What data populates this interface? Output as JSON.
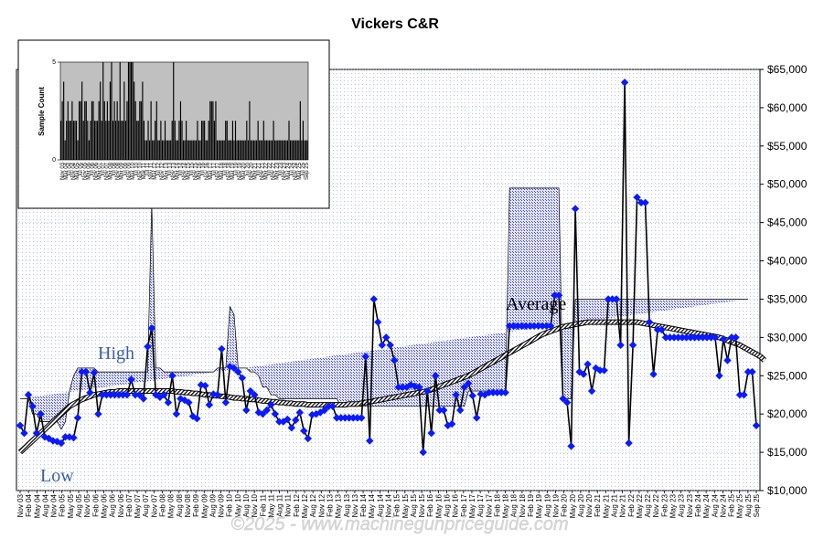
{
  "chart_data": [
    {
      "type": "line",
      "title": "Vickers C&R",
      "y_tick_labels": [
        "$10,000",
        "$15,000",
        "$20,000",
        "$25,000",
        "$30,000",
        "$35,000",
        "$40,000",
        "$45,000",
        "$50,000",
        "$55,000",
        "$60,000",
        "$65,000"
      ],
      "y_tick_values": [
        10000,
        15000,
        20000,
        25000,
        30000,
        35000,
        40000,
        45000,
        50000,
        55000,
        60000,
        65000
      ],
      "ylim": [
        10000,
        65000
      ],
      "x_tick_labels": [
        "Nov 03",
        "Feb 04",
        "May 04",
        "Aug 04",
        "Nov 04",
        "Feb 05",
        "May 05",
        "Aug 05",
        "Nov 05",
        "Feb 06",
        "May 06",
        "Aug 06",
        "Nov 06",
        "Feb 07",
        "May 07",
        "Aug 07",
        "Nov 07",
        "Feb 08",
        "May 08",
        "Aug 08",
        "Nov 08",
        "Feb 09",
        "May 09",
        "Aug 09",
        "Nov 09",
        "Feb 10",
        "May 10",
        "Aug 10",
        "Nov 10",
        "Feb 11",
        "May 11",
        "Aug 11",
        "Nov 11",
        "Feb 12",
        "May 12",
        "Aug 12",
        "Nov 12",
        "Feb 13",
        "May 13",
        "Aug 13",
        "Nov 13",
        "Feb 14",
        "May 14",
        "Aug 14",
        "Nov 14",
        "Feb 15",
        "May 15",
        "Aug 15",
        "Nov 15",
        "Feb 16",
        "May 16",
        "Aug 16",
        "Nov 16",
        "Feb 17",
        "May 17",
        "Aug 17",
        "Nov 17",
        "Feb 18",
        "May 18",
        "Aug 18",
        "Nov 18",
        "Feb 19",
        "May 19",
        "Aug 19",
        "Nov 19",
        "Feb 20",
        "May 20",
        "Aug 20",
        "Nov 20",
        "Feb 21",
        "May 21",
        "Aug 21",
        "Nov 21",
        "Feb 22",
        "May 22",
        "Aug 22",
        "Nov 22",
        "Feb 23",
        "May 23",
        "Aug 23",
        "Nov 23",
        "Feb 24",
        "May 24",
        "Aug 24",
        "Nov 24",
        "Feb 25",
        "May 25",
        "Aug 25",
        "Sep 25"
      ],
      "annotations": {
        "high": "High",
        "low": "Low",
        "average": "Average"
      },
      "watermark": "©2025 - www.machinegunpriceguide.com",
      "colors": {
        "price_line": "#000000",
        "marker": "#0a1aff",
        "band_fill": "#2a2aa0",
        "high_label": "#3a5fa0",
        "low_label": "#3a5fa0",
        "average_label": "#000000",
        "grid_dot": "#9aa8d0"
      },
      "grid": true,
      "period_months": 3,
      "price_series": {
        "name": "",
        "y": [
          18500,
          17500,
          22500,
          21000,
          17500,
          20000,
          17000,
          16800,
          16500,
          16400,
          16200,
          17000,
          17000,
          16900,
          19500,
          25500,
          25500,
          22800,
          25400,
          20000,
          22500,
          22500,
          22500,
          22500,
          22500,
          22500,
          22500,
          24500,
          22500,
          22500,
          22000,
          28800,
          31200,
          22500,
          22200,
          22500,
          21500,
          25000,
          20000,
          22000,
          21800,
          21500,
          19700,
          19400,
          23800,
          23700,
          21200,
          22600,
          22500,
          28500,
          21500,
          26200,
          26000,
          25500,
          24700,
          20500,
          23000,
          22500,
          20200,
          20000,
          20500,
          21200,
          20000,
          19000,
          19000,
          19300,
          18200,
          19200,
          20200,
          17800,
          16800,
          19900,
          20000,
          20200,
          20500,
          21000,
          21000,
          19500,
          19500,
          19500,
          19500,
          19500,
          19500,
          19500,
          27500,
          16500,
          35000,
          32000,
          29000,
          30000,
          29000,
          27000,
          23500,
          23500,
          23500,
          23800,
          23600,
          23500,
          15000,
          23000,
          17500,
          25000,
          20500,
          20500,
          18500,
          18700,
          22500,
          20500,
          23500,
          24000,
          22400,
          19500,
          22600,
          22500,
          22800,
          22800,
          22800,
          22800,
          22800,
          31500,
          31500,
          31500,
          31500,
          31500,
          31500,
          31500,
          31500,
          31500,
          31500,
          31500,
          35500,
          35500,
          22000,
          21500,
          15800,
          46800,
          25500,
          25200,
          26500,
          23000,
          26000,
          25700,
          25700,
          35000,
          35000,
          35000,
          29000,
          63300,
          16200,
          29000,
          48300,
          47600,
          47600,
          32000,
          25200,
          31000,
          31000,
          30000,
          30000,
          30000,
          30000,
          30000,
          30000,
          30000,
          30000,
          30000,
          30000,
          30000,
          30000,
          30000,
          25000,
          29800,
          27000,
          30000,
          30000,
          22500,
          22500,
          25500,
          25500,
          18500
        ]
      },
      "high_band": {
        "name": "",
        "y": [
          22000,
          22000,
          22000,
          20000,
          20000,
          19000,
          19000,
          19000,
          19000,
          19000,
          18000,
          19000,
          23000,
          25000,
          26000,
          26000,
          26000,
          26000,
          26000,
          25500,
          25500,
          25500,
          25500,
          25500,
          25500,
          25500,
          25500,
          25500,
          25500,
          25500,
          25500,
          25500,
          47500,
          26000,
          26000,
          25500,
          25500,
          25500,
          25500,
          25500,
          25500,
          25500,
          25500,
          25500,
          25500,
          25500,
          25500,
          25500,
          26000,
          26000,
          26000,
          34000,
          33000,
          26000,
          26000,
          26000,
          25500,
          25500,
          25000,
          23500,
          23500,
          22500,
          22500,
          22000,
          22000,
          22000,
          22000,
          22000,
          22000,
          22000,
          22000,
          22000,
          22000,
          22000,
          22000,
          22000,
          22000,
          22000,
          21000,
          21000,
          21000,
          21000,
          21000,
          21000,
          21000,
          21000,
          21000,
          21000,
          21000,
          21000,
          21000,
          21000,
          21000,
          21000,
          21000,
          21000,
          21000,
          21000,
          21000,
          21000,
          21000,
          21000,
          21000,
          21000,
          21000,
          21000,
          21000,
          21000,
          21000,
          23000,
          23000,
          23000,
          23000,
          23000,
          23000,
          23000,
          23000,
          23000,
          23000,
          49500,
          49500,
          49500,
          49500,
          49500,
          49500,
          49500,
          49500,
          49500,
          49500,
          49500,
          49500,
          49500,
          22000,
          22000,
          22000,
          35000,
          35000,
          35000,
          35000,
          35000,
          35000,
          35000,
          35000,
          35000,
          35000,
          35000,
          35000,
          35000,
          35000,
          35000,
          35000,
          35000,
          35000,
          35000,
          35000,
          35000,
          35000,
          35000,
          35000,
          35000,
          35000,
          35000,
          35000,
          35000,
          35000,
          35000,
          35000,
          35000,
          35000,
          35000,
          35000,
          35000,
          35000,
          35000,
          35000,
          35000,
          35000,
          35000
        ]
      },
      "low_band": {
        "name": "",
        "y": [
          15000,
          15000,
          15000,
          14500,
          14500,
          14500,
          14500,
          14500,
          14500,
          14500,
          14500,
          14500,
          17000,
          19000,
          20000,
          20000,
          20000,
          20000,
          20000,
          20000,
          20000,
          20000,
          20000,
          20000,
          20000,
          20000,
          20000,
          20000,
          20000,
          20000,
          20000,
          20000,
          20000,
          20000,
          20000,
          20000,
          20000,
          20000,
          20000,
          20000,
          20000,
          20000,
          19000,
          19000,
          19000,
          17500,
          17500,
          19000,
          19000,
          19000,
          17500,
          17500,
          17500,
          17000,
          17000,
          17000,
          15000,
          15000,
          15000,
          15000,
          15000,
          15000,
          15000,
          15000,
          15000,
          15000,
          15000,
          15000,
          15000,
          18000,
          18000,
          18000,
          19000,
          19000,
          19000,
          19000,
          19000,
          19000,
          19000,
          19000,
          19000,
          19000,
          19000,
          19000,
          19000,
          19000,
          19000,
          19000,
          19000,
          19000,
          19000,
          19000,
          19000,
          19000,
          19000,
          19000,
          19000,
          19000,
          19000,
          19000,
          19000,
          19000,
          19000,
          19000,
          19000,
          19000,
          19000,
          19000,
          19000,
          22000,
          22000,
          22000,
          22000,
          22000,
          22000,
          22000,
          22000,
          22000,
          22000,
          22500,
          22500,
          22500,
          22500,
          22500,
          22500,
          22500,
          22500,
          22500,
          22500,
          22500,
          22500,
          22500,
          21000,
          21000,
          21000,
          16500,
          16500,
          16500,
          16500,
          16500,
          16500,
          16500,
          16500,
          16500,
          16500,
          16500,
          16500,
          16500,
          16500,
          16500,
          16500,
          16500,
          16500,
          16500,
          16500,
          16500,
          16500,
          16500,
          16500,
          16500,
          16500,
          16500,
          16500,
          16500,
          16500,
          16500,
          16500,
          16500,
          16500,
          16500,
          16500,
          16500,
          16500,
          16500,
          16500,
          16500,
          16500,
          16500
        ]
      },
      "average_series": {
        "name": "",
        "y": [
          15000,
          15500,
          16000,
          16500,
          17000,
          17500,
          18000,
          18500,
          19000,
          19500,
          20000,
          20500,
          21000,
          21300,
          21600,
          21900,
          22100,
          22300,
          22500,
          22600,
          22700,
          22800,
          22900,
          22900,
          23000,
          23000,
          23000,
          23000,
          23000,
          23000,
          23000,
          23000,
          23000,
          23000,
          23000,
          23000,
          23000,
          23000,
          22900,
          22900,
          22800,
          22800,
          22700,
          22700,
          22600,
          22500,
          22500,
          22400,
          22400,
          22300,
          22300,
          22200,
          22100,
          22100,
          22000,
          22000,
          21900,
          21900,
          21800,
          21700,
          21700,
          21600,
          21600,
          21500,
          21500,
          21400,
          21400,
          21300,
          21300,
          21300,
          21200,
          21200,
          21200,
          21200,
          21200,
          21200,
          21200,
          21200,
          21200,
          21200,
          21300,
          21300,
          21300,
          21400,
          21500,
          21600,
          21700,
          21800,
          21900,
          22000,
          22100,
          22200,
          22300,
          22400,
          22500,
          22600,
          22700,
          22800,
          22900,
          23000,
          23200,
          23400,
          23600,
          23800,
          24000,
          24200,
          24400,
          24600,
          24800,
          25000,
          25300,
          25600,
          25900,
          26200,
          26500,
          26800,
          27100,
          27400,
          27700,
          28000,
          28300,
          28600,
          28900,
          29200,
          29500,
          29800,
          30100,
          30400,
          30600,
          30800,
          31000,
          31200,
          31400,
          31500,
          31600,
          31700,
          31800,
          31900,
          32000,
          32000,
          32000,
          32000,
          32000,
          32000,
          32000,
          32000,
          32000,
          32000,
          32000,
          32000,
          32000,
          31900,
          31800,
          31700,
          31600,
          31500,
          31400,
          31300,
          31200,
          31100,
          31000,
          30900,
          30800,
          30700,
          30600,
          30500,
          30400,
          30300,
          30200,
          30100,
          30000,
          29800,
          29600,
          29400,
          29200,
          29000,
          28700,
          28400,
          28100,
          27800,
          27500,
          27000
        ]
      }
    },
    {
      "type": "bar",
      "inset": true,
      "ylabel": "Sample Count",
      "y_tick_labels": [
        "0",
        "5"
      ],
      "ylim": [
        0,
        5
      ],
      "x_tick_labels": [
        "Nov 03",
        "Mar 04",
        "Jul 04",
        "Nov 04",
        "Mar 05",
        "Jul 05",
        "Nov 05",
        "Mar 06",
        "Jul 06",
        "Nov 06",
        "Mar 07",
        "Jul 07",
        "Nov 07",
        "Mar 08",
        "Jul 08",
        "Nov 08",
        "Mar 09",
        "Jul 09",
        "Nov 09",
        "Mar 10",
        "Jul 10",
        "Nov 10",
        "Mar 11",
        "Jul 11",
        "Nov 11",
        "Mar 12",
        "Jul 12",
        "Nov 12",
        "Mar 13",
        "Jul 13",
        "Nov 13",
        "Mar 14",
        "Jul 14",
        "Nov 14",
        "Mar 15",
        "Jul 15",
        "Nov 15",
        "Mar 16",
        "Jul 16",
        "Nov 16",
        "Mar 17",
        "Jul 17",
        "Nov 17",
        "Mar 18",
        "Jul 18",
        "Nov 18",
        "Mar 19",
        "Jul 19",
        "Nov 19",
        "Mar 20",
        "Jul 20",
        "Nov 20",
        "Mar 21",
        "Jul 21",
        "Nov 21",
        "Mar 22",
        "Jul 22",
        "Nov 22",
        "Mar 23",
        "Jul 23",
        "Nov 23",
        "Mar 24",
        "Jul 24",
        "Nov 24",
        "Mar 25",
        "Jul 25",
        "Sep 25"
      ],
      "values": [
        2,
        3,
        4,
        1,
        2,
        3,
        2,
        2,
        3,
        2,
        2,
        2,
        1,
        3,
        3,
        4,
        2,
        3,
        3,
        2,
        1,
        2,
        3,
        3,
        2,
        2,
        2,
        3,
        4,
        2,
        5,
        3,
        2,
        3,
        2,
        4,
        5,
        2,
        3,
        2,
        3,
        2,
        5,
        2,
        2,
        4,
        2,
        3,
        5,
        5,
        5,
        5,
        4,
        3,
        2,
        2,
        3,
        3,
        4,
        2,
        1,
        1,
        2,
        1,
        3,
        1,
        1,
        2,
        3,
        1,
        1,
        2,
        1,
        1,
        2,
        1,
        1,
        1,
        1,
        2,
        5,
        2,
        1,
        1,
        2,
        3,
        2,
        1,
        1,
        2,
        1,
        1,
        1,
        1,
        1,
        1,
        1,
        2,
        1,
        1,
        2,
        2,
        2,
        1,
        1,
        2,
        3,
        3,
        3,
        2,
        3,
        1,
        1,
        1,
        1,
        1,
        1,
        2,
        2,
        1,
        1,
        1,
        2,
        1,
        2,
        1,
        1,
        1,
        1,
        1,
        1,
        1,
        2,
        1,
        3,
        1,
        1,
        1,
        1,
        1,
        2,
        1,
        1,
        1,
        2,
        1,
        1,
        1,
        1,
        1,
        1,
        2,
        1,
        1,
        1,
        1,
        1,
        1,
        1,
        1,
        1,
        1,
        2,
        1,
        1,
        1,
        1,
        1,
        1,
        1,
        3,
        1,
        2,
        1,
        1,
        1
      ]
    }
  ]
}
